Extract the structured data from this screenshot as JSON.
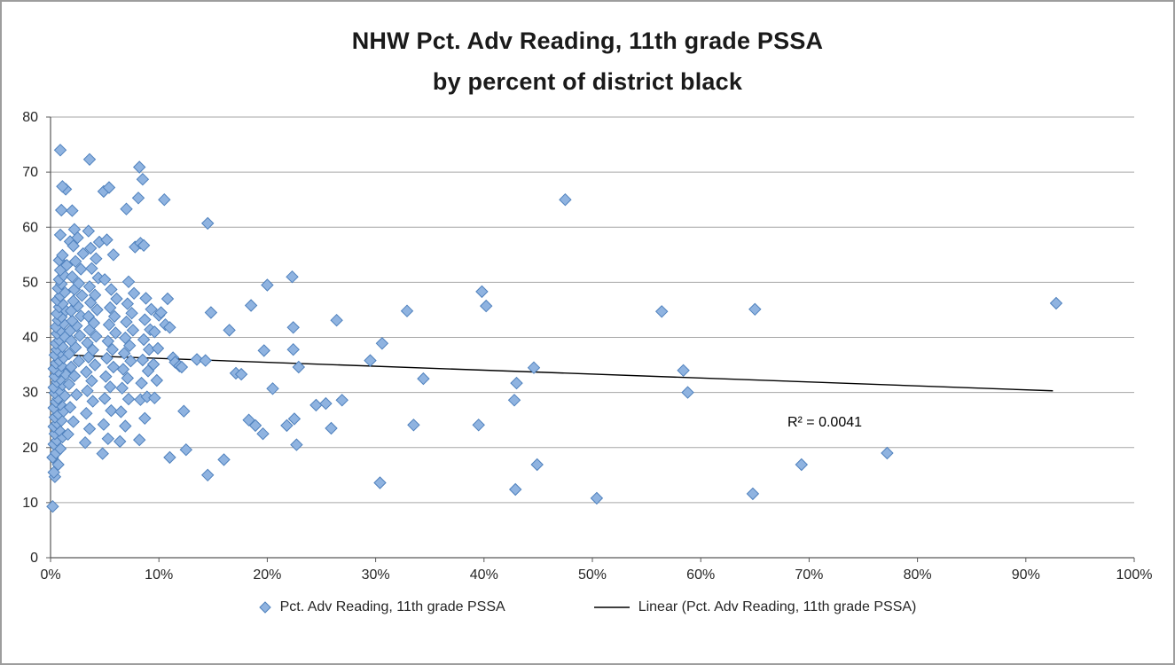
{
  "title": {
    "line1": "NHW Pct. Adv Reading, 11th grade PSSA",
    "line2": "by percent of district black"
  },
  "legend": {
    "series_label": "Pct. Adv Reading, 11th grade PSSA",
    "trend_label": "Linear (Pct. Adv Reading, 11th grade PSSA)"
  },
  "colors": {
    "marker_fill": "#8FB3E0",
    "marker_stroke": "#4F81BD",
    "trendline": "#000000",
    "gridline": "#a6a6a6",
    "axis": "#595959"
  },
  "chart_data": {
    "type": "scatter",
    "title": "NHW Pct. Adv Reading, 11th grade PSSA by percent of district black",
    "xlabel": "",
    "ylabel": "",
    "xlim": [
      0,
      100
    ],
    "ylim": [
      0,
      80
    ],
    "x_ticks": [
      "0%",
      "10%",
      "20%",
      "30%",
      "40%",
      "50%",
      "60%",
      "70%",
      "80%",
      "90%",
      "100%"
    ],
    "y_ticks": [
      0,
      10,
      20,
      30,
      40,
      50,
      60,
      70,
      80
    ],
    "grid": "horizontal",
    "legend_position": "bottom",
    "annotation": {
      "text": "R² = 0.0041",
      "x": 68,
      "y": 23.8
    },
    "trendline": {
      "name": "Linear (Pct. Adv Reading, 11th grade PSSA)",
      "x_start": 0,
      "y_start": 36.9,
      "x_end": 92.5,
      "y_end": 30.3
    },
    "series": [
      {
        "name": "Pct. Adv Reading, 11th grade PSSA",
        "marker": "diamond",
        "points": [
          [
            0.2,
            9.3
          ],
          [
            0.4,
            14.7
          ],
          [
            0.3,
            15.5
          ],
          [
            0.7,
            16.9
          ],
          [
            0.2,
            18.2
          ],
          [
            0.5,
            19.0
          ],
          [
            0.9,
            19.8
          ],
          [
            0.3,
            20.6
          ],
          [
            0.6,
            21.3
          ],
          [
            1.1,
            21.9
          ],
          [
            0.4,
            22.5
          ],
          [
            0.8,
            23.1
          ],
          [
            0.3,
            23.8
          ],
          [
            0.6,
            24.4
          ],
          [
            1.0,
            24.9
          ],
          [
            0.4,
            25.5
          ],
          [
            0.7,
            26.1
          ],
          [
            1.2,
            26.6
          ],
          [
            0.3,
            27.2
          ],
          [
            0.9,
            27.8
          ],
          [
            0.5,
            28.3
          ],
          [
            0.7,
            28.9
          ],
          [
            1.3,
            29.4
          ],
          [
            0.4,
            29.9
          ],
          [
            0.8,
            30.4
          ],
          [
            0.3,
            30.9
          ],
          [
            1.1,
            31.4
          ],
          [
            0.6,
            31.9
          ],
          [
            0.9,
            32.4
          ],
          [
            0.4,
            32.9
          ],
          [
            1.4,
            33.3
          ],
          [
            0.7,
            33.8
          ],
          [
            0.3,
            34.3
          ],
          [
            1.0,
            34.8
          ],
          [
            0.5,
            35.3
          ],
          [
            0.8,
            35.8
          ],
          [
            1.2,
            36.3
          ],
          [
            0.4,
            36.8
          ],
          [
            0.9,
            37.3
          ],
          [
            0.6,
            37.8
          ],
          [
            1.1,
            38.3
          ],
          [
            0.5,
            38.9
          ],
          [
            0.8,
            39.5
          ],
          [
            1.3,
            40.1
          ],
          [
            0.6,
            40.7
          ],
          [
            0.9,
            41.3
          ],
          [
            0.5,
            41.9
          ],
          [
            1.2,
            42.5
          ],
          [
            0.7,
            43.1
          ],
          [
            1.0,
            43.7
          ],
          [
            0.6,
            44.3
          ],
          [
            1.4,
            44.9
          ],
          [
            0.8,
            45.5
          ],
          [
            1.1,
            46.1
          ],
          [
            0.6,
            46.8
          ],
          [
            0.9,
            47.5
          ],
          [
            1.3,
            48.2
          ],
          [
            0.7,
            48.9
          ],
          [
            1.0,
            49.7
          ],
          [
            0.8,
            50.5
          ],
          [
            1.2,
            51.3
          ],
          [
            0.9,
            52.2
          ],
          [
            1.5,
            53.1
          ],
          [
            0.8,
            54.0
          ],
          [
            1.1,
            54.9
          ],
          [
            1.8,
            57.4
          ],
          [
            0.9,
            58.6
          ],
          [
            1.0,
            63.1
          ],
          [
            1.4,
            66.9
          ],
          [
            1.1,
            67.4
          ],
          [
            0.9,
            74.0
          ],
          [
            1.6,
            22.4
          ],
          [
            2.1,
            24.7
          ],
          [
            1.8,
            27.3
          ],
          [
            2.4,
            29.6
          ],
          [
            1.7,
            31.5
          ],
          [
            2.2,
            33.0
          ],
          [
            1.9,
            34.6
          ],
          [
            2.6,
            35.7
          ],
          [
            1.7,
            37.0
          ],
          [
            2.3,
            38.2
          ],
          [
            1.9,
            39.4
          ],
          [
            2.7,
            40.3
          ],
          [
            1.8,
            41.2
          ],
          [
            2.4,
            42.1
          ],
          [
            2.0,
            43.0
          ],
          [
            2.8,
            43.9
          ],
          [
            1.9,
            44.8
          ],
          [
            2.5,
            45.7
          ],
          [
            2.1,
            46.6
          ],
          [
            2.9,
            47.6
          ],
          [
            2.2,
            48.7
          ],
          [
            2.6,
            49.8
          ],
          [
            2.0,
            51.0
          ],
          [
            2.8,
            52.4
          ],
          [
            2.3,
            53.8
          ],
          [
            3.0,
            55.2
          ],
          [
            2.1,
            56.6
          ],
          [
            2.5,
            58.1
          ],
          [
            2.2,
            59.6
          ],
          [
            2.0,
            63.0
          ],
          [
            3.2,
            20.9
          ],
          [
            3.6,
            23.4
          ],
          [
            3.3,
            26.2
          ],
          [
            3.9,
            28.4
          ],
          [
            3.4,
            30.3
          ],
          [
            3.8,
            32.1
          ],
          [
            3.3,
            33.7
          ],
          [
            4.1,
            35.0
          ],
          [
            3.5,
            36.4
          ],
          [
            3.9,
            37.7
          ],
          [
            3.4,
            39.0
          ],
          [
            4.2,
            40.2
          ],
          [
            3.6,
            41.4
          ],
          [
            4.0,
            42.6
          ],
          [
            3.5,
            43.8
          ],
          [
            4.3,
            45.0
          ],
          [
            3.7,
            46.3
          ],
          [
            4.1,
            47.7
          ],
          [
            3.6,
            49.2
          ],
          [
            4.4,
            50.8
          ],
          [
            3.8,
            52.5
          ],
          [
            4.2,
            54.3
          ],
          [
            3.7,
            56.2
          ],
          [
            4.5,
            57.3
          ],
          [
            3.5,
            59.3
          ],
          [
            3.6,
            72.3
          ],
          [
            4.8,
            18.9
          ],
          [
            5.3,
            21.6
          ],
          [
            4.9,
            24.2
          ],
          [
            5.6,
            26.7
          ],
          [
            5.0,
            28.9
          ],
          [
            5.5,
            31.0
          ],
          [
            5.1,
            32.9
          ],
          [
            5.8,
            34.6
          ],
          [
            5.2,
            36.2
          ],
          [
            5.7,
            37.8
          ],
          [
            5.3,
            39.3
          ],
          [
            6.0,
            40.8
          ],
          [
            5.4,
            42.3
          ],
          [
            5.9,
            43.8
          ],
          [
            5.5,
            45.4
          ],
          [
            6.1,
            47.0
          ],
          [
            5.6,
            48.7
          ],
          [
            5.0,
            50.5
          ],
          [
            5.8,
            55.0
          ],
          [
            5.2,
            57.7
          ],
          [
            4.9,
            66.5
          ],
          [
            5.4,
            67.2
          ],
          [
            6.4,
            21.1
          ],
          [
            6.9,
            23.9
          ],
          [
            6.5,
            26.5
          ],
          [
            7.2,
            28.8
          ],
          [
            6.6,
            30.8
          ],
          [
            7.1,
            32.6
          ],
          [
            6.7,
            34.2
          ],
          [
            7.4,
            35.7
          ],
          [
            6.8,
            37.1
          ],
          [
            7.3,
            38.5
          ],
          [
            6.9,
            39.9
          ],
          [
            7.6,
            41.3
          ],
          [
            7.0,
            42.8
          ],
          [
            7.5,
            44.4
          ],
          [
            7.1,
            46.1
          ],
          [
            7.7,
            48.0
          ],
          [
            7.2,
            50.1
          ],
          [
            7.8,
            56.4
          ],
          [
            7.0,
            63.3
          ],
          [
            8.2,
            21.4
          ],
          [
            8.7,
            25.3
          ],
          [
            8.3,
            28.7
          ],
          [
            8.9,
            29.2
          ],
          [
            8.4,
            31.7
          ],
          [
            9.0,
            33.9
          ],
          [
            8.5,
            35.9
          ],
          [
            9.1,
            37.8
          ],
          [
            8.6,
            39.6
          ],
          [
            9.2,
            41.4
          ],
          [
            8.7,
            43.2
          ],
          [
            9.3,
            45.1
          ],
          [
            8.8,
            47.1
          ],
          [
            8.3,
            57.1
          ],
          [
            8.6,
            56.7
          ],
          [
            8.1,
            65.3
          ],
          [
            8.2,
            70.9
          ],
          [
            8.5,
            68.7
          ],
          [
            9.6,
            29.0
          ],
          [
            9.8,
            32.2
          ],
          [
            9.5,
            35.1
          ],
          [
            9.9,
            38.0
          ],
          [
            9.6,
            41.0
          ],
          [
            10.0,
            44.0
          ],
          [
            10.5,
            65.0
          ],
          [
            10.8,
            47.0
          ],
          [
            10.2,
            44.5
          ],
          [
            10.6,
            42.3
          ],
          [
            11.0,
            41.8
          ],
          [
            11.3,
            36.3
          ],
          [
            11.5,
            35.5
          ],
          [
            11.9,
            34.8
          ],
          [
            12.1,
            34.6
          ],
          [
            12.3,
            26.6
          ],
          [
            12.5,
            19.6
          ],
          [
            11.0,
            18.2
          ],
          [
            13.5,
            36.0
          ],
          [
            14.3,
            35.8
          ],
          [
            14.5,
            60.7
          ],
          [
            14.8,
            44.5
          ],
          [
            14.5,
            15.0
          ],
          [
            16.0,
            17.8
          ],
          [
            16.5,
            41.3
          ],
          [
            17.1,
            33.5
          ],
          [
            17.6,
            33.3
          ],
          [
            18.5,
            45.8
          ],
          [
            18.3,
            25.0
          ],
          [
            18.9,
            24.0
          ],
          [
            19.7,
            37.6
          ],
          [
            20.0,
            49.5
          ],
          [
            19.6,
            22.5
          ],
          [
            20.5,
            30.7
          ],
          [
            21.8,
            24.0
          ],
          [
            22.3,
            51.0
          ],
          [
            22.4,
            41.8
          ],
          [
            22.4,
            37.8
          ],
          [
            22.9,
            34.6
          ],
          [
            22.5,
            25.2
          ],
          [
            22.7,
            20.5
          ],
          [
            24.5,
            27.7
          ],
          [
            25.4,
            28.0
          ],
          [
            25.9,
            23.5
          ],
          [
            26.4,
            43.1
          ],
          [
            26.9,
            28.6
          ],
          [
            29.5,
            35.8
          ],
          [
            30.6,
            38.9
          ],
          [
            30.4,
            13.6
          ],
          [
            32.9,
            44.8
          ],
          [
            34.4,
            32.5
          ],
          [
            33.5,
            24.1
          ],
          [
            39.5,
            24.1
          ],
          [
            39.8,
            48.3
          ],
          [
            40.2,
            45.7
          ],
          [
            42.8,
            28.6
          ],
          [
            43.0,
            31.7
          ],
          [
            42.9,
            12.4
          ],
          [
            44.6,
            34.5
          ],
          [
            44.9,
            16.9
          ],
          [
            47.5,
            65.0
          ],
          [
            50.4,
            10.8
          ],
          [
            56.4,
            44.7
          ],
          [
            58.4,
            34.0
          ],
          [
            58.8,
            30.0
          ],
          [
            64.8,
            11.6
          ],
          [
            65.0,
            45.1
          ],
          [
            69.3,
            16.9
          ],
          [
            77.2,
            19.0
          ],
          [
            92.8,
            46.2
          ]
        ]
      }
    ]
  }
}
